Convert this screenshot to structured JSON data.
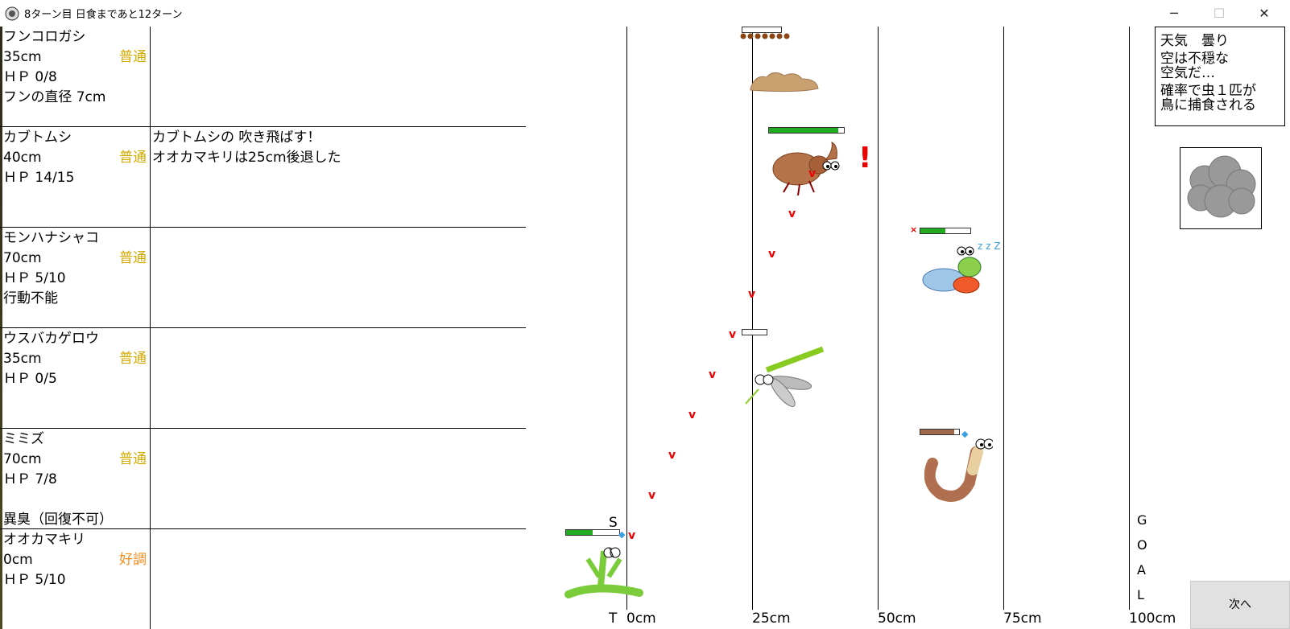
{
  "window": {
    "title": "8ターン目 日食まであと12ターン",
    "min_icon": "minimize-icon",
    "max_icon": "maximize-icon",
    "close_icon": "close-icon"
  },
  "insects": [
    {
      "name": "フンコロガシ",
      "distance": "35cm",
      "status": "普通",
      "hp": "ＨＰ 0/8",
      "extra": "フンの直径 7cm",
      "extra2": ""
    },
    {
      "name": "カブトムシ",
      "distance": "40cm",
      "status": "普通",
      "hp": "ＨＰ 14/15",
      "extra": "",
      "extra2": ""
    },
    {
      "name": "モンハナシャコ",
      "distance": "70cm",
      "status": "普通",
      "hp": "ＨＰ 5/10",
      "extra": "行動不能",
      "extra2": ""
    },
    {
      "name": "ウスバカゲロウ",
      "distance": "35cm",
      "status": "普通",
      "hp": "ＨＰ 0/5",
      "extra": "",
      "extra2": ""
    },
    {
      "name": "ミミズ",
      "distance": "70cm",
      "status": "普通",
      "hp": "ＨＰ 7/8",
      "extra": "",
      "extra2": "異臭（回復不可）"
    },
    {
      "name": "オオカマキリ",
      "distance": "0cm",
      "status": "好調",
      "hp": "ＨＰ 5/10",
      "extra": "",
      "extra2": ""
    }
  ],
  "messages": [
    "カブトムシの 吹き飛ばす！",
    "オオカマキリは25cm後退した"
  ],
  "track": {
    "start_top": "S",
    "start_bottom": "T",
    "axis": [
      "0cm",
      "25cm",
      "50cm",
      "75cm",
      "100cm"
    ],
    "goal": [
      "G",
      "O",
      "A",
      "L"
    ]
  },
  "weather": {
    "line1": "天気　曇り",
    "line2": "空は不穏な",
    "line3": "空気だ…",
    "line4": "確率で虫１匹が",
    "line5": "鳥に捕食される",
    "icon": "cloud-icon"
  },
  "next_label": "次へ",
  "hp": {
    "kabuto": 0.93,
    "shako": 0.5,
    "mimizu": 0.875,
    "kamakiri": 0.5,
    "usuba": 0
  },
  "colors": {
    "status_normal": "#d4aa00",
    "status_good": "#f28c1a",
    "hp_green": "#22aa22",
    "hp_brown": "#a0684a",
    "arrow": "#e00000"
  }
}
